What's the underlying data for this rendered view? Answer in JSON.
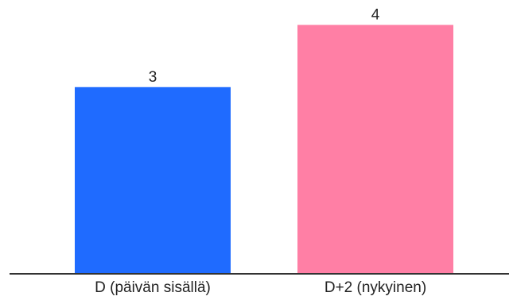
{
  "chart_data": {
    "type": "bar",
    "categories": [
      "D (päivän sisällä)",
      "D+2 (nykyinen)"
    ],
    "values": [
      3,
      4
    ],
    "data_labels": [
      "3",
      "4"
    ],
    "colors": [
      "#1F6BFF",
      "#FF7FA5"
    ],
    "ylim": [
      0,
      4.4
    ],
    "grid": false,
    "legend": "none",
    "title": "",
    "xlabel": "",
    "ylabel": ""
  }
}
